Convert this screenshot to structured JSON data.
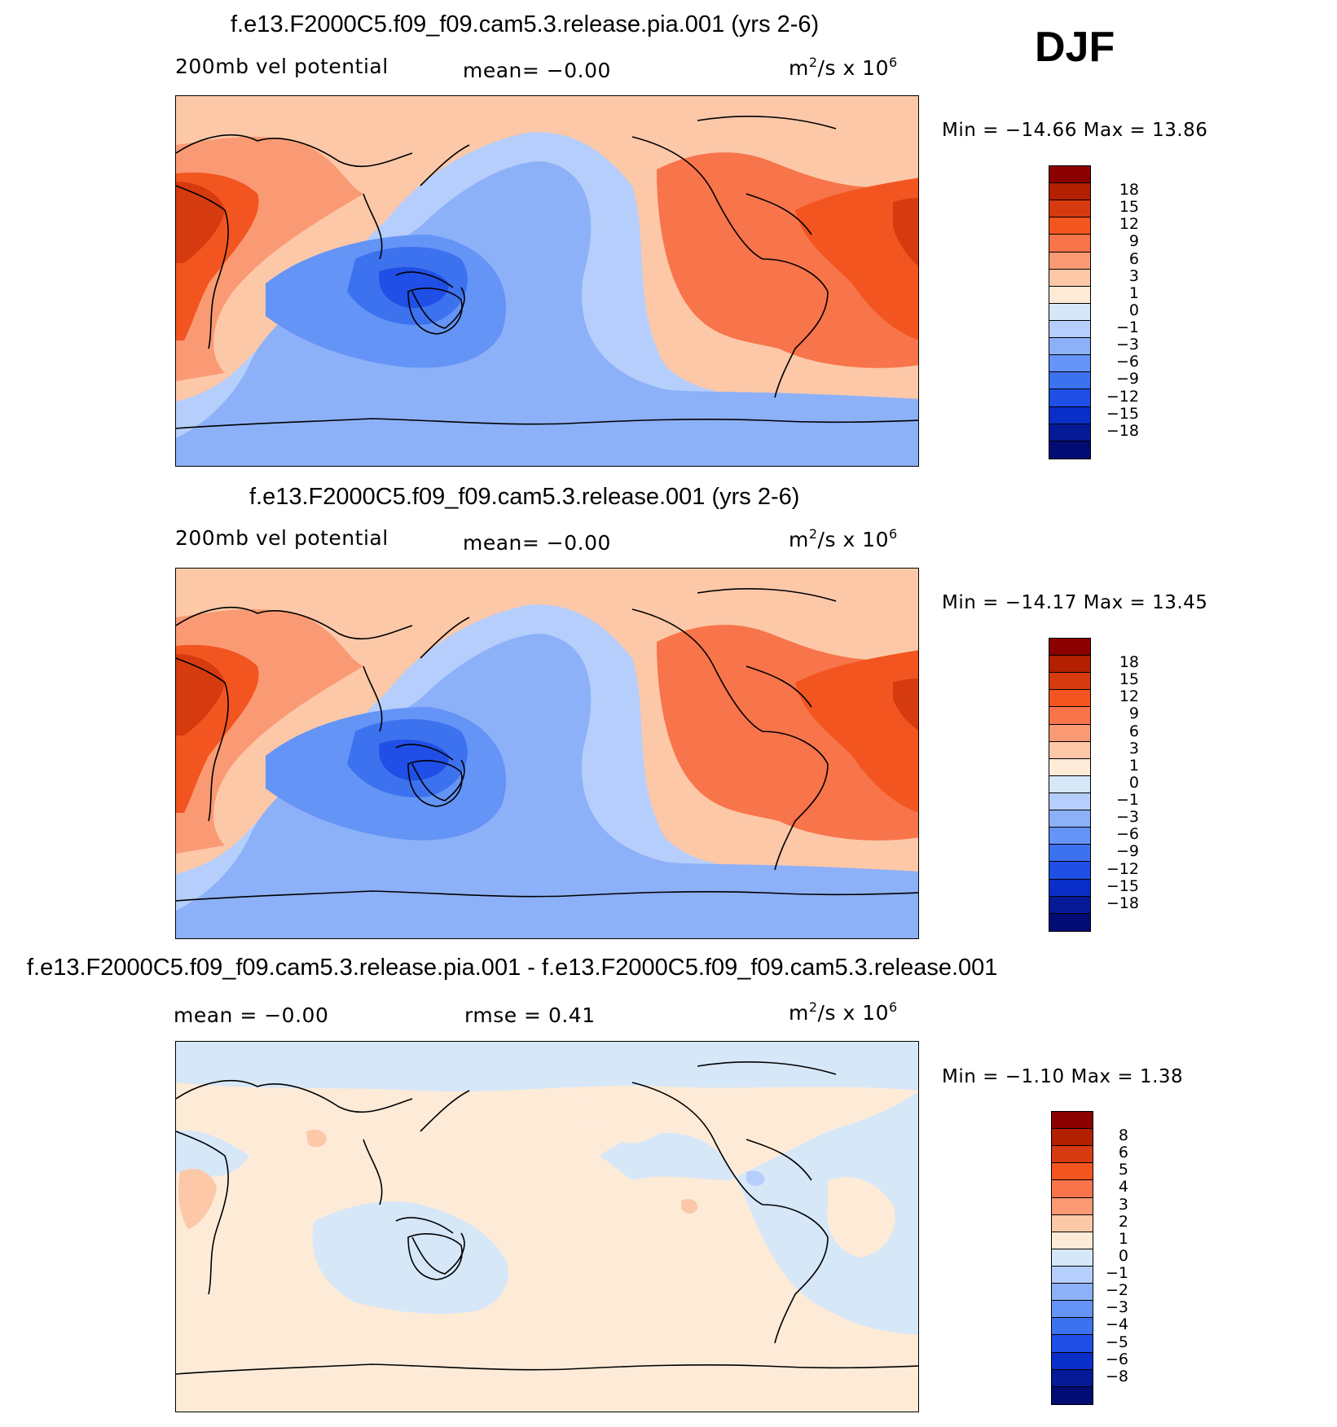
{
  "season": "DJF",
  "panels": [
    {
      "title": "f.e13.F2000C5.f09_f09.cam5.3.release.pia.001 (yrs 2-6)",
      "left_label": "200mb vel potential",
      "center_label": "mean=   −0.00",
      "units_base": "m",
      "units_exp": "2",
      "units_mid": "/s x 10",
      "units_pow": "6",
      "minmax": "Min  =  −14.66  Max  =    13.86",
      "colorbar": {
        "colors": [
          "#8b0000",
          "#b22000",
          "#d63b10",
          "#f2551f",
          "#f8744a",
          "#fa9a74",
          "#fcc8a8",
          "#fdebd8",
          "#d6e7f8",
          "#b6cefb",
          "#8db1f8",
          "#6494f6",
          "#3d72ef",
          "#1f4fe6",
          "#0a2fc9",
          "#061a96",
          "#020c72"
        ],
        "labels": [
          "18",
          "15",
          "12",
          "9",
          "6",
          "3",
          "1",
          "0",
          "−1",
          "−3",
          "−6",
          "−9",
          "−12",
          "−15",
          "−18"
        ]
      }
    },
    {
      "title": "f.e13.F2000C5.f09_f09.cam5.3.release.001 (yrs 2-6)",
      "left_label": "200mb vel potential",
      "center_label": "mean=   −0.00",
      "units_base": "m",
      "units_exp": "2",
      "units_mid": "/s x 10",
      "units_pow": "6",
      "minmax": "Min  =  −14.17  Max  =    13.45",
      "colorbar": {
        "colors": [
          "#8b0000",
          "#b22000",
          "#d63b10",
          "#f2551f",
          "#f8744a",
          "#fa9a74",
          "#fcc8a8",
          "#fdebd8",
          "#d6e7f8",
          "#b6cefb",
          "#8db1f8",
          "#6494f6",
          "#3d72ef",
          "#1f4fe6",
          "#0a2fc9",
          "#061a96",
          "#020c72"
        ],
        "labels": [
          "18",
          "15",
          "12",
          "9",
          "6",
          "3",
          "1",
          "0",
          "−1",
          "−3",
          "−6",
          "−9",
          "−12",
          "−15",
          "−18"
        ]
      }
    },
    {
      "title": "f.e13.F2000C5.f09_f09.cam5.3.release.pia.001 - f.e13.F2000C5.f09_f09.cam5.3.release.001",
      "left_label": "mean  =    −0.00",
      "center_label": "rmse  =     0.41",
      "units_base": "m",
      "units_exp": "2",
      "units_mid": "/s x 10",
      "units_pow": "6",
      "minmax": "Min  =    −1.10  Max  =      1.38",
      "colorbar": {
        "colors": [
          "#8b0000",
          "#b22000",
          "#d63b10",
          "#f2551f",
          "#f8744a",
          "#fa9a74",
          "#fcc8a8",
          "#fdebd8",
          "#d6e7f8",
          "#b6cefb",
          "#8db1f8",
          "#6494f6",
          "#3d72ef",
          "#1f4fe6",
          "#0a2fc9",
          "#061a96",
          "#020c72"
        ],
        "labels": [
          "8",
          "6",
          "5",
          "4",
          "3",
          "2",
          "1",
          "0",
          "−1",
          "−2",
          "−3",
          "−4",
          "−5",
          "−6",
          "−8"
        ]
      }
    }
  ]
}
